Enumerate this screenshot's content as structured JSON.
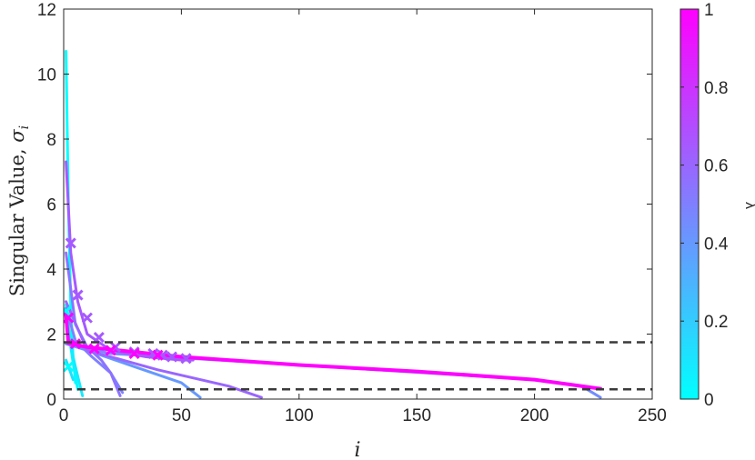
{
  "chart_data": {
    "type": "line",
    "xlabel": "i",
    "ylabel": {
      "text": "Singular Value, ",
      "symbol": "σ",
      "subscript": "i"
    },
    "xlim": [
      0,
      250
    ],
    "ylim": [
      0,
      12
    ],
    "xticks": [
      "0",
      "50",
      "100",
      "150",
      "200",
      "250"
    ],
    "yticks": [
      "0",
      "2",
      "4",
      "6",
      "8",
      "10",
      "12"
    ],
    "grid": false,
    "colorbar": {
      "label": "λ",
      "range": [
        0,
        1
      ],
      "ticks": [
        "0",
        "0.2",
        "0.4",
        "0.6",
        "0.8",
        "1"
      ],
      "color_low": "#00ffff",
      "color_high": "#ff00ff"
    },
    "reference_lines": [
      {
        "y": 1.75,
        "style": "dashed",
        "color": "#3a3a3a"
      },
      {
        "y": 0.3,
        "style": "dashed",
        "color": "#3a3a3a"
      }
    ],
    "series": [
      {
        "lambda": 0.0,
        "x": [
          1,
          2,
          3,
          4,
          5
        ],
        "y": [
          10.7,
          6.0,
          2.8,
          1.3,
          0.5
        ]
      },
      {
        "lambda": 0.03,
        "x": [
          1,
          2,
          3,
          4,
          5,
          6
        ],
        "y": [
          2.9,
          2.3,
          1.6,
          1.1,
          0.7,
          0.3
        ]
      },
      {
        "lambda": 0.08,
        "x": [
          1,
          2,
          3,
          4,
          5,
          6,
          7,
          8
        ],
        "y": [
          2.6,
          2.2,
          1.7,
          1.3,
          1.0,
          0.7,
          0.4,
          0.1
        ]
      },
      {
        "lambda": 0.12,
        "x": [
          1,
          2,
          3,
          4
        ],
        "y": [
          1.2,
          1.0,
          0.8,
          0.6
        ]
      },
      {
        "lambda": 0.4,
        "x": [
          1,
          10,
          30,
          50,
          58
        ],
        "y": [
          1.7,
          1.5,
          1.0,
          0.5,
          0.05
        ]
      },
      {
        "lambda": 0.45,
        "x": [
          1,
          20,
          100,
          200,
          220,
          228
        ],
        "y": [
          1.7,
          1.4,
          1.05,
          0.6,
          0.4,
          0.05
        ]
      },
      {
        "lambda": 0.5,
        "x": [
          1,
          5,
          12,
          20,
          25
        ],
        "y": [
          2.8,
          1.8,
          1.3,
          0.8,
          0.2
        ]
      },
      {
        "lambda": 0.55,
        "x": [
          1,
          5,
          10,
          16,
          20,
          24
        ],
        "y": [
          4.5,
          2.3,
          1.6,
          1.2,
          0.8,
          0.1
        ]
      },
      {
        "lambda": 0.6,
        "x": [
          1,
          10,
          40,
          70,
          84
        ],
        "y": [
          3.0,
          1.5,
          0.9,
          0.4,
          0.05
        ]
      },
      {
        "lambda": 0.65,
        "x": [
          1,
          3,
          6,
          10,
          20,
          35,
          50,
          55
        ],
        "y": [
          7.3,
          4.5,
          3.0,
          2.0,
          1.5,
          1.3,
          1.2,
          1.2
        ]
      },
      {
        "lambda": 1.0,
        "x": [
          1,
          2,
          10,
          50,
          100,
          150,
          200,
          228
        ],
        "y": [
          2.6,
          1.72,
          1.6,
          1.3,
          1.05,
          0.85,
          0.6,
          0.32
        ]
      }
    ],
    "markers": [
      {
        "lambda": 0.0,
        "x": [
          1,
          2
        ],
        "y": [
          2.7,
          1.0
        ]
      },
      {
        "lambda": 0.65,
        "x": [
          3,
          6,
          10,
          15,
          22,
          30,
          38,
          42,
          46,
          52
        ],
        "y": [
          4.8,
          3.2,
          2.5,
          1.9,
          1.6,
          1.45,
          1.4,
          1.35,
          1.3,
          1.25
        ]
      },
      {
        "lambda": 1.0,
        "x": [
          2,
          5,
          13,
          20,
          30,
          40
        ],
        "y": [
          2.5,
          1.7,
          1.55,
          1.5,
          1.4,
          1.35
        ]
      }
    ]
  }
}
